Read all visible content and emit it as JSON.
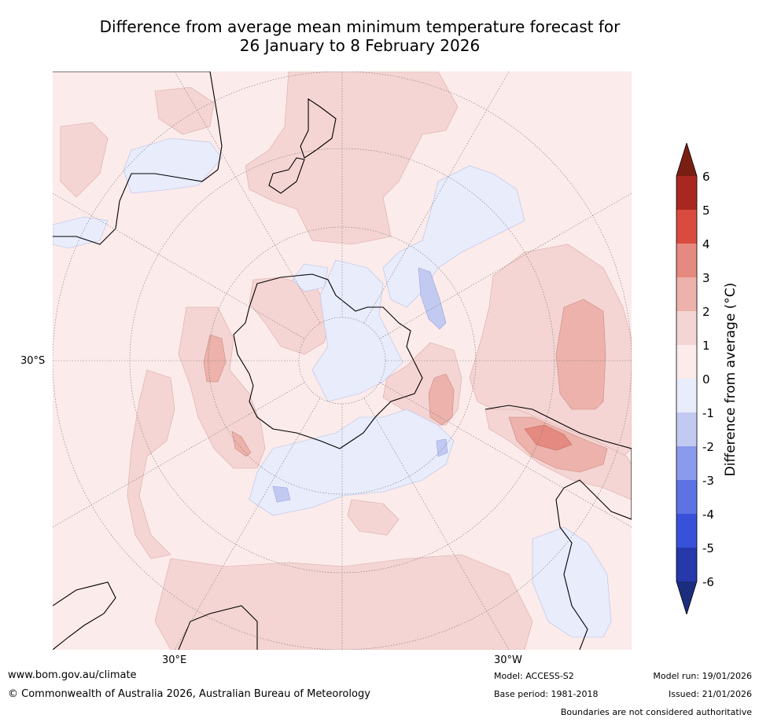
{
  "title": {
    "line1": "Difference from average mean minimum temperature forecast for",
    "line2": "26 January to 8 February 2026"
  },
  "map": {
    "projection": "south polar stereographic",
    "labels": {
      "lat": "30°S",
      "lon_east": "30°E",
      "lon_west": "30°W"
    }
  },
  "colorbar": {
    "title": "Difference from average (°C)",
    "ticks": [
      "6",
      "5",
      "4",
      "3",
      "2",
      "1",
      "0",
      "-1",
      "-2",
      "-3",
      "-4",
      "-5",
      "-6"
    ],
    "colors": {
      "ext_high": "#7a1e14",
      "5_6": "#a82820",
      "4_5": "#d94b3f",
      "3_4": "#e58a80",
      "2_3": "#ecb2ab",
      "1_2": "#f4d5d3",
      "0_1": "#fbebea",
      "m1_0": "#e8ecfb",
      "m2_m1": "#c3caf2",
      "m3_m2": "#8b9aec",
      "m4_m3": "#5d73e3",
      "m5_m4": "#3752d9",
      "m6_m5": "#2638aa",
      "ext_low": "#1c2d7d"
    }
  },
  "footer": {
    "url": "www.bom.gov.au/climate",
    "copyright": "© Commonwealth of Australia 2026, Australian Bureau of Meteorology",
    "model": "Model: ACCESS-S2",
    "base_period": "Base period: 1981-2018",
    "model_run": "Model run: 19/01/2026",
    "issued": "Issued: 21/01/2026",
    "disclaimer": "Boundaries are not considered authoritative"
  }
}
